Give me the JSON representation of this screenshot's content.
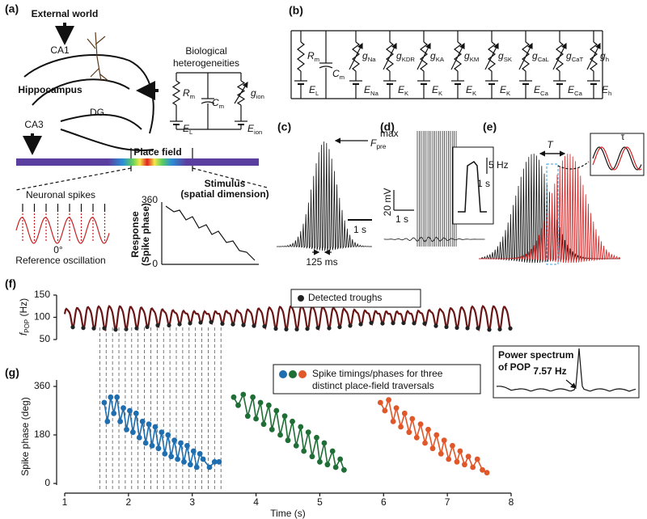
{
  "panels": {
    "a": {
      "label": "(a)",
      "external": "External world",
      "ca1": "CA1",
      "hippocampus": "Hippocampus",
      "dg": "DG",
      "ca3": "CA3",
      "bio": [
        "Biological",
        "heterogeneities"
      ],
      "rm": {
        "main": "R",
        "sub": "m"
      },
      "cm": {
        "main": "C",
        "sub": "m"
      },
      "gion": {
        "main": "g",
        "sub": "ion"
      },
      "el": {
        "main": "E",
        "sub": "L"
      },
      "eion": {
        "main": "E",
        "sub": "ion"
      },
      "place_field": "Place field",
      "spikes": "Neuronal spikes",
      "zero_deg": "0°",
      "ref": "Reference oscillation",
      "stimulus": [
        "Stimulus",
        "(spatial dimension)"
      ],
      "response": [
        "Response",
        "(Spike phase)"
      ],
      "phase_ticks": [
        360,
        0
      ]
    },
    "b": {
      "label": "(b)",
      "branches": [
        {
          "top": {
            "main": "R",
            "sub": "m"
          },
          "bottom": {
            "main": "E",
            "sub": "L"
          }
        },
        {
          "top": {
            "main": "C",
            "sub": "m"
          }
        },
        {
          "top": {
            "main": "g",
            "sub": "Na"
          },
          "bottom": {
            "main": "E",
            "sub": "Na"
          }
        },
        {
          "top": {
            "main": "g",
            "sub": "KDR"
          },
          "bottom": {
            "main": "E",
            "sub": "K"
          }
        },
        {
          "top": {
            "main": "g",
            "sub": "KA"
          },
          "bottom": {
            "main": "E",
            "sub": "K"
          }
        },
        {
          "top": {
            "main": "g",
            "sub": "KM"
          },
          "bottom": {
            "main": "E",
            "sub": "K"
          }
        },
        {
          "top": {
            "main": "g",
            "sub": "SK"
          },
          "bottom": {
            "main": "E",
            "sub": "K"
          }
        },
        {
          "top": {
            "main": "g",
            "sub": "CaL"
          },
          "bottom": {
            "main": "E",
            "sub": "Ca"
          }
        },
        {
          "top": {
            "main": "g",
            "sub": "CaT"
          },
          "bottom": {
            "main": "E",
            "sub": "Ca"
          }
        },
        {
          "top": {
            "main": "g",
            "sub": "h"
          },
          "bottom": {
            "main": "E",
            "sub": "h"
          }
        }
      ]
    },
    "c": {
      "label": "(c)",
      "fpre": {
        "main": "F",
        "sub": "pre",
        "sup": "max"
      },
      "scale": "1 s",
      "interval": "125 ms"
    },
    "d": {
      "label": "(d)",
      "mv": "20 mV",
      "s1": "1 s",
      "hz": "5 Hz",
      "s2": "1 s"
    },
    "e": {
      "label": "(e)",
      "T": "T",
      "tau": "τ"
    }
  },
  "chart_data": [
    {
      "type": "line",
      "label": "(f)",
      "ylabel": {
        "main": "f",
        "sub": "POP",
        "unit": " (Hz)"
      },
      "ylim": [
        50,
        150
      ],
      "yticks": [
        50,
        100,
        150
      ],
      "legend": "Detected troughs",
      "color": "#6b1616"
    },
    {
      "type": "scatter",
      "label": "(g)",
      "ylabel": "Spike phase (deg)",
      "xlabel": "Time (s)",
      "xlim": [
        1,
        8
      ],
      "xticks": [
        1,
        2,
        3,
        4,
        5,
        6,
        7,
        8
      ],
      "ylim": [
        0,
        360
      ],
      "yticks": [
        0,
        180,
        360
      ],
      "legend": [
        "Spike timings/phases for three",
        "distinct place-field traversals"
      ],
      "inset": {
        "title": [
          "Power spectrum",
          "of POP"
        ],
        "peak": "7.57 Hz"
      },
      "series": [
        {
          "color": "#1f6fb0",
          "x": [
            1.62,
            1.67,
            1.72,
            1.77,
            1.82,
            1.87,
            1.92,
            1.97,
            2.02,
            2.07,
            2.12,
            2.17,
            2.22,
            2.27,
            2.32,
            2.37,
            2.42,
            2.47,
            2.52,
            2.57,
            2.62,
            2.67,
            2.72,
            2.77,
            2.82,
            2.87,
            2.92,
            2.97,
            3.02,
            3.07,
            3.12,
            3.17,
            3.27,
            3.35,
            3.42
          ],
          "values": [
            300,
            230,
            320,
            260,
            320,
            230,
            280,
            200,
            270,
            190,
            260,
            170,
            230,
            150,
            220,
            140,
            210,
            130,
            190,
            110,
            180,
            100,
            160,
            90,
            150,
            80,
            140,
            70,
            120,
            60,
            110,
            90,
            60,
            80,
            80
          ]
        },
        {
          "color": "#1e6e35",
          "x": [
            3.65,
            3.72,
            3.8,
            3.87,
            3.95,
            4.0,
            4.07,
            4.12,
            4.2,
            4.25,
            4.32,
            4.38,
            4.45,
            4.5,
            4.57,
            4.63,
            4.7,
            4.75,
            4.82,
            4.88,
            4.95,
            5.0,
            5.07,
            5.12,
            5.2,
            5.25,
            5.32,
            5.38
          ],
          "values": [
            320,
            290,
            330,
            250,
            320,
            240,
            300,
            220,
            290,
            200,
            270,
            180,
            250,
            160,
            230,
            140,
            210,
            120,
            190,
            100,
            170,
            80,
            150,
            70,
            120,
            60,
            90,
            50
          ]
        },
        {
          "color": "#e0572a",
          "x": [
            5.95,
            6.02,
            6.08,
            6.15,
            6.2,
            6.27,
            6.33,
            6.4,
            6.45,
            6.52,
            6.58,
            6.65,
            6.7,
            6.77,
            6.83,
            6.9,
            6.95,
            7.02,
            7.08,
            7.15,
            7.2,
            7.27,
            7.33,
            7.4,
            7.47,
            7.55,
            7.62
          ],
          "values": [
            300,
            270,
            310,
            230,
            280,
            210,
            260,
            190,
            240,
            170,
            220,
            150,
            200,
            130,
            180,
            110,
            160,
            90,
            140,
            80,
            120,
            70,
            100,
            60,
            90,
            50,
            40
          ]
        }
      ]
    }
  ]
}
